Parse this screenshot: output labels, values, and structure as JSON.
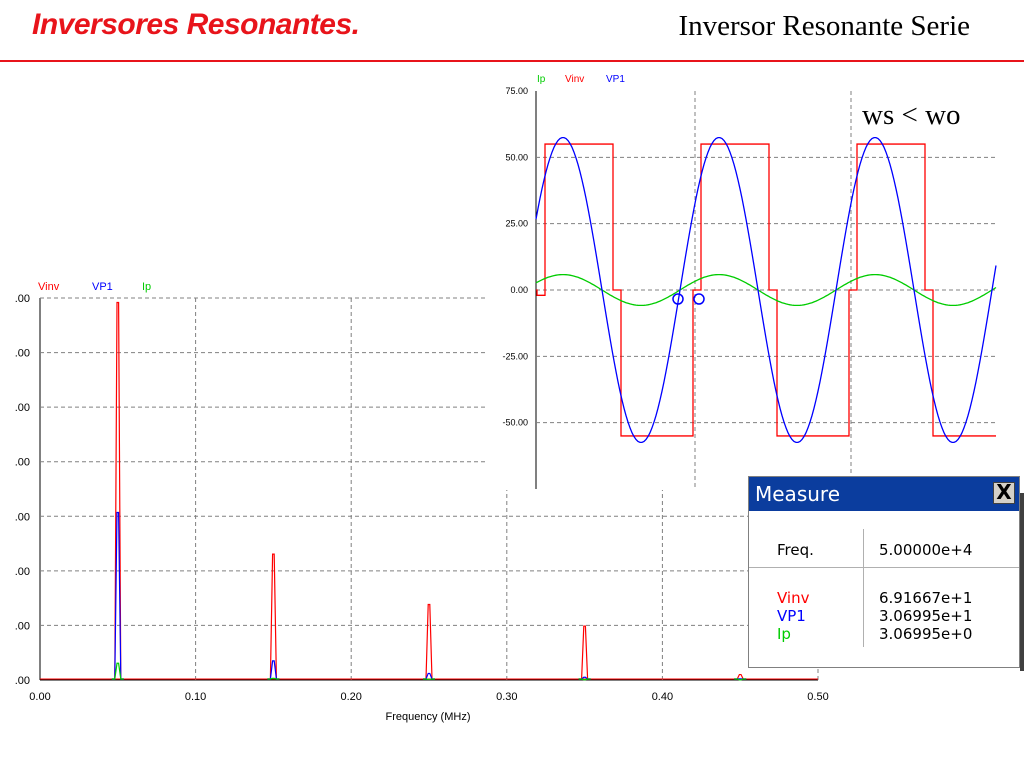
{
  "slide": {
    "title": "Inversores Resonantes.",
    "subtitle": "Inversor Resonante Serie"
  },
  "colors": {
    "accent": "#e8141b",
    "vinv": "#ff0000",
    "vp1": "#0000ff",
    "ip": "#00cc00",
    "grid": "#808080"
  },
  "chart_data": [
    {
      "type": "bar",
      "legend": [
        "Vinv",
        "VP1",
        "Ip"
      ],
      "xlabel": "Frequency (MHz)",
      "ylabel": "",
      "xlim": [
        0,
        0.5
      ],
      "ylim": [
        0,
        70
      ],
      "x_ticks": [
        "0.00",
        "0.10",
        "0.20",
        "0.30",
        "0.40",
        "0.50"
      ],
      "y_ticks": [
        ".00",
        ".00",
        ".00",
        ".00",
        ".00",
        ".00",
        ".00",
        ".00"
      ],
      "x": [
        0.05,
        0.15,
        0.25,
        0.35,
        0.45
      ],
      "series": [
        {
          "name": "Vinv",
          "values": [
            69.17,
            23.06,
            13.83,
            9.88,
            1.0
          ]
        },
        {
          "name": "VP1",
          "values": [
            30.7,
            3.5,
            1.2,
            0.5,
            0.2
          ]
        },
        {
          "name": "Ip",
          "values": [
            3.07,
            0.3,
            0.1,
            0.05,
            0.02
          ]
        }
      ],
      "grid": true
    },
    {
      "type": "line",
      "legend": [
        "Ip",
        "Vinv",
        "VP1"
      ],
      "annotation": "ws < wo",
      "ylim": [
        -75,
        75
      ],
      "y_ticks": [
        "75.00",
        "50.00",
        "25.00",
        "0.00",
        "-25.00",
        "-50.00"
      ],
      "periods": 3,
      "series": [
        {
          "name": "Vinv",
          "square_amplitude": 55
        },
        {
          "name": "VP1",
          "amplitude": 57.5
        },
        {
          "name": "Ip",
          "amplitude": 5.8
        }
      ],
      "grid": true
    }
  ],
  "measure": {
    "title": "Measure",
    "close_label": "X",
    "freq_label": "Freq.",
    "freq_value": "5.00000e+4",
    "rows": [
      {
        "label": "Vinv",
        "value": "6.91667e+1",
        "color": "#ff0000"
      },
      {
        "label": "VP1",
        "value": "3.06995e+1",
        "color": "#0000ff"
      },
      {
        "label": "Ip",
        "value": "3.06995e+0",
        "color": "#00cc00"
      }
    ]
  }
}
